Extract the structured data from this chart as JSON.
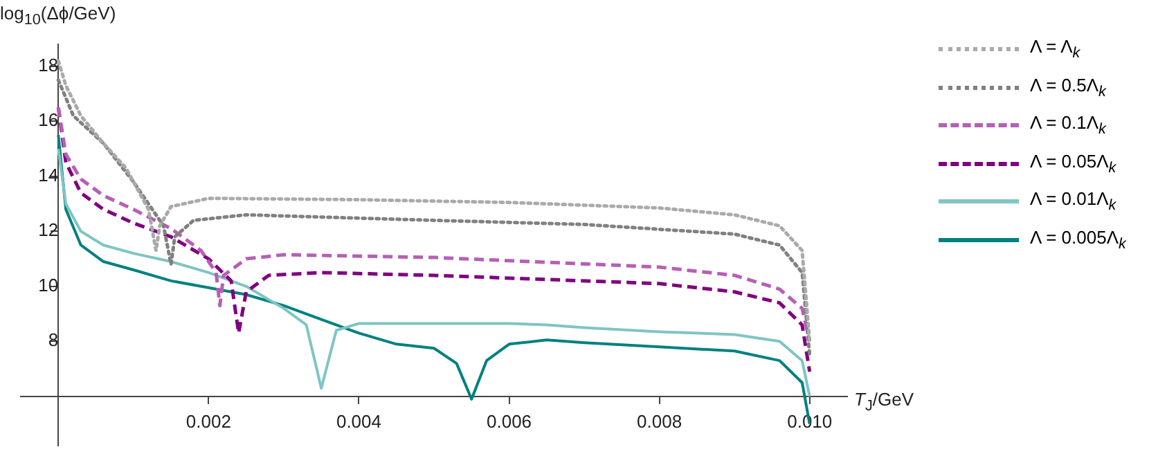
{
  "chart_data": {
    "type": "line",
    "xlabel": "T$_{J}$/GeV",
    "ylabel": "log$_{10}$(Δϕ/GeV)",
    "xlim": [
      -0.0005,
      0.0105
    ],
    "ylim": [
      4.2,
      18.8
    ],
    "xticks": [
      {
        "value": 0,
        "label": null
      },
      0.002,
      0.004,
      0.006,
      0.008,
      {
        "value": 0.01,
        "label": "0.010"
      }
    ],
    "yticks": [
      {
        "value": 6,
        "label": null
      },
      8,
      10,
      12,
      14,
      16,
      18
    ],
    "grid": false,
    "legend": "right",
    "marker": "none",
    "series": [
      {
        "name": "Λ = Λ$_{k}$",
        "color": "#aaaaaa",
        "line_style": "dotted",
        "x": [
          0,
          0.0001,
          0.0003,
          0.0006,
          0.0009,
          0.0012,
          0.0013,
          0.00135,
          0.0015,
          0.002,
          0.004,
          0.006,
          0.008,
          0.009,
          0.0096,
          0.0099,
          0.01
        ],
        "values": [
          18.2,
          17.3,
          16.2,
          15.2,
          14.3,
          12.8,
          11.3,
          12.2,
          12.9,
          13.2,
          13.15,
          13.05,
          12.85,
          12.6,
          12.2,
          11.3,
          8
        ]
      },
      {
        "name": "Λ = 0.5Λ$_{k}$",
        "color": "#808080",
        "line_style": "dotted",
        "x": [
          0,
          0.0002,
          0.0006,
          0.001,
          0.0014,
          0.0015,
          0.00155,
          0.0018,
          0.0025,
          0.005,
          0.007,
          0.009,
          0.0096,
          0.0099,
          0.01
        ],
        "values": [
          17.5,
          16.2,
          15.2,
          13.8,
          12.2,
          10.8,
          11.8,
          12.4,
          12.6,
          12.4,
          12.25,
          11.9,
          11.5,
          10.5,
          7.5
        ]
      },
      {
        "name": "Λ = 0.1Λ$_{k}$",
        "color": "#b65fb6",
        "line_style": "dashed",
        "x": [
          0,
          0.0001,
          0.0003,
          0.0006,
          0.001,
          0.0015,
          0.0019,
          0.0021,
          0.00215,
          0.0022,
          0.0025,
          0.003,
          0.005,
          0.008,
          0.009,
          0.0096,
          0.0099,
          0.01
        ],
        "values": [
          16.5,
          14.8,
          13.9,
          13.3,
          12.8,
          12.1,
          11.3,
          10.5,
          9.3,
          10.4,
          11,
          11.15,
          11.05,
          10.7,
          10.4,
          9.9,
          9.2,
          8
        ]
      },
      {
        "name": "Λ = 0.05Λ$_{k}$",
        "color": "#800080",
        "line_style": "dashed",
        "x": [
          0,
          0.0001,
          0.0003,
          0.0006,
          0.001,
          0.0015,
          0.002,
          0.0023,
          0.0024,
          0.0025,
          0.0028,
          0.0035,
          0.005,
          0.008,
          0.009,
          0.0096,
          0.0099,
          0.01
        ],
        "values": [
          16.5,
          14.5,
          13.4,
          12.8,
          12.3,
          11.8,
          11,
          10.2,
          8.3,
          9.8,
          10.4,
          10.5,
          10.4,
          10.1,
          9.8,
          9.4,
          8.6,
          6.9
        ]
      },
      {
        "name": "Λ = 0.01Λ$_{k}$",
        "color": "#80c4c4",
        "line_style": "solid",
        "x": [
          0,
          0.0001,
          0.0003,
          0.0006,
          0.001,
          0.0015,
          0.002,
          0.0025,
          0.003,
          0.0033,
          0.0035,
          0.0037,
          0.004,
          0.005,
          0.006,
          0.0065,
          0.007,
          0.008,
          0.009,
          0.0096,
          0.0099,
          0.01
        ],
        "values": [
          15,
          13,
          12,
          11.5,
          11.2,
          10.9,
          10.5,
          10,
          9.2,
          8.6,
          6.3,
          8.4,
          8.65,
          8.65,
          8.65,
          8.6,
          8.5,
          8.35,
          8.25,
          8,
          7.3,
          6
        ]
      },
      {
        "name": "Λ = 0.005Λ$_{k}$",
        "color": "#008080",
        "line_style": "solid",
        "x": [
          0,
          0.0001,
          0.0003,
          0.0006,
          0.001,
          0.0015,
          0.002,
          0.0025,
          0.003,
          0.0035,
          0.004,
          0.0045,
          0.005,
          0.0053,
          0.0055,
          0.0057,
          0.006,
          0.0065,
          0.007,
          0.008,
          0.009,
          0.0096,
          0.0099,
          0.01
        ],
        "values": [
          15.5,
          12.8,
          11.5,
          10.9,
          10.6,
          10.2,
          9.95,
          9.7,
          9.3,
          8.8,
          8.3,
          7.9,
          7.75,
          7.2,
          5.9,
          7.3,
          7.9,
          8.05,
          7.95,
          7.8,
          7.65,
          7.3,
          6.5,
          5
        ]
      }
    ]
  }
}
